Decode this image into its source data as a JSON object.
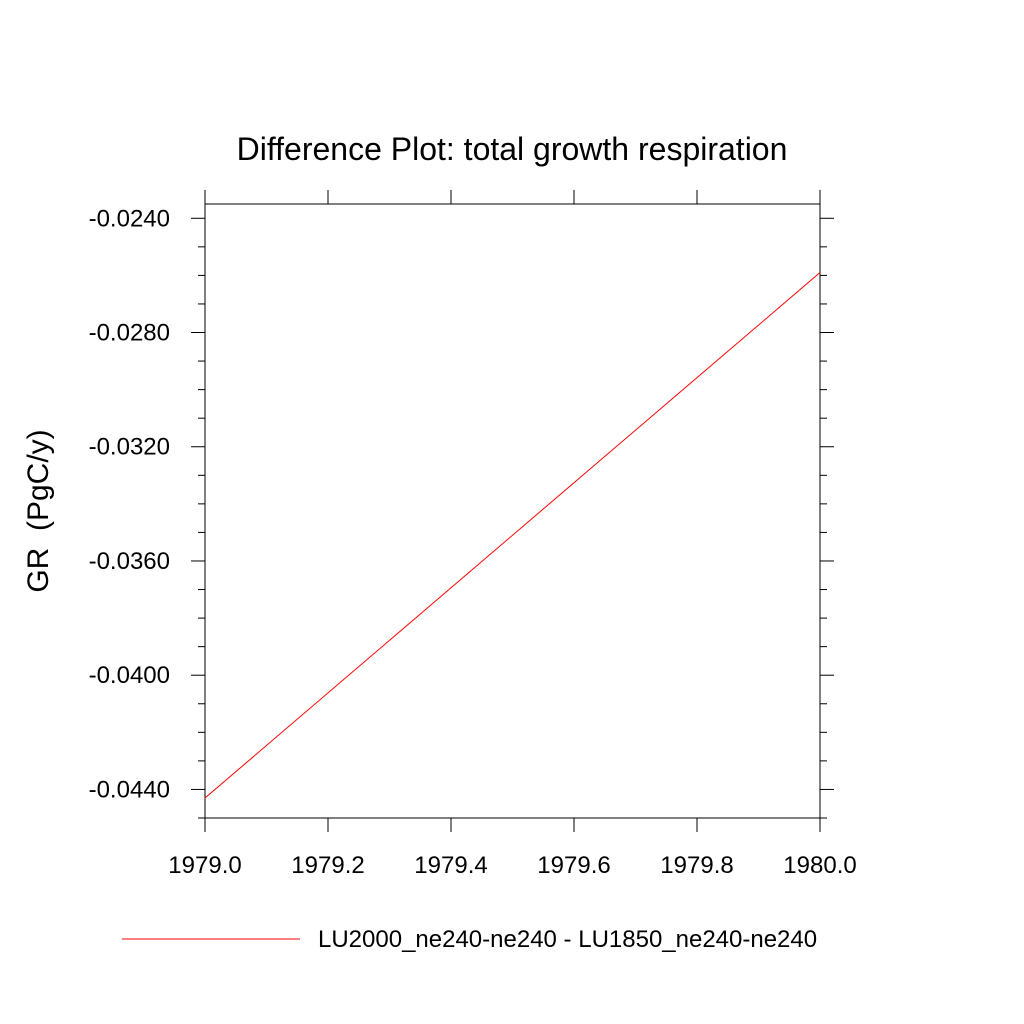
{
  "chart_data": {
    "type": "line",
    "title": "Difference Plot: total growth respiration",
    "xlabel": "",
    "ylabel": "GR  (PgC/y)",
    "xlim": [
      1979.0,
      1980.0
    ],
    "ylim": [
      -0.045,
      -0.0235
    ],
    "x_ticks": [
      1979.0,
      1979.2,
      1979.4,
      1979.6,
      1979.8,
      1980.0
    ],
    "x_tick_labels": [
      "1979.0",
      "1979.2",
      "1979.4",
      "1979.6",
      "1979.8",
      "1980.0"
    ],
    "y_ticks": [
      -0.024,
      -0.028,
      -0.032,
      -0.036,
      -0.04,
      -0.044
    ],
    "y_tick_labels": [
      "-0.0240",
      "-0.0280",
      "-0.0320",
      "-0.0360",
      "-0.0400",
      "-0.0440"
    ],
    "grid": false,
    "legend_position": "bottom",
    "series": [
      {
        "name": "LU2000_ne240-ne240 - LU1850_ne240-ne240",
        "color": "#ff0000",
        "x": [
          1979.0,
          1980.0
        ],
        "y": [
          -0.0443,
          -0.0259
        ]
      }
    ]
  }
}
